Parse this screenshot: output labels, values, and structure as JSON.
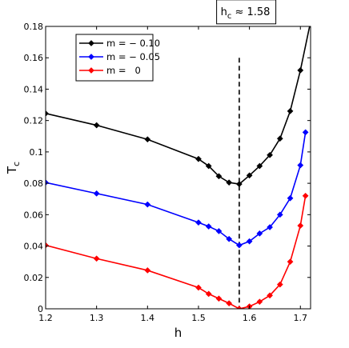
{
  "chart_data": {
    "type": "line",
    "xlabel": "h",
    "ylabel": "T",
    "ylabel_subscript": "c",
    "xlim": [
      1.2,
      1.72
    ],
    "ylim": [
      0,
      0.18
    ],
    "xticks": [
      1.2,
      1.3,
      1.4,
      1.5,
      1.6,
      1.7
    ],
    "xtick_labels": [
      "1.2",
      "1.3",
      "1.4",
      "1.5",
      "1.6",
      "1.7"
    ],
    "yticks": [
      0,
      0.02,
      0.04,
      0.06,
      0.08,
      0.1,
      0.12,
      0.14,
      0.16,
      0.18
    ],
    "ytick_labels": [
      "0",
      "0.02",
      "0.04",
      "0.06",
      "0.08",
      "0.1",
      "0.12",
      "0.14",
      "0.16",
      "0.18"
    ],
    "grid": false,
    "legend_position": "top-left",
    "series": [
      {
        "name": "m = − 0.10",
        "color": "#000000",
        "marker": "diamond",
        "x": [
          1.2,
          1.3,
          1.4,
          1.5,
          1.52,
          1.54,
          1.56,
          1.58,
          1.6,
          1.62,
          1.64,
          1.66,
          1.68,
          1.7,
          1.72
        ],
        "y": [
          0.1245,
          0.117,
          0.108,
          0.0955,
          0.091,
          0.0845,
          0.0805,
          0.0795,
          0.085,
          0.091,
          0.098,
          0.1085,
          0.126,
          0.152,
          0.183
        ]
      },
      {
        "name": "m = − 0.05",
        "color": "#0000ff",
        "marker": "diamond",
        "x": [
          1.2,
          1.3,
          1.4,
          1.5,
          1.52,
          1.54,
          1.56,
          1.58,
          1.6,
          1.62,
          1.64,
          1.66,
          1.68,
          1.7,
          1.71
        ],
        "y": [
          0.0805,
          0.0735,
          0.0665,
          0.055,
          0.0525,
          0.0495,
          0.0445,
          0.0405,
          0.043,
          0.048,
          0.052,
          0.06,
          0.0705,
          0.0915,
          0.1125
        ]
      },
      {
        "name": "m =   0",
        "color": "#ff0000",
        "marker": "diamond",
        "x": [
          1.2,
          1.3,
          1.4,
          1.5,
          1.52,
          1.54,
          1.56,
          1.58,
          1.6,
          1.62,
          1.64,
          1.66,
          1.68,
          1.7,
          1.71
        ],
        "y": [
          0.0405,
          0.032,
          0.0245,
          0.0135,
          0.0095,
          0.0065,
          0.0035,
          0.0,
          0.0015,
          0.0045,
          0.0085,
          0.0155,
          0.03,
          0.053,
          0.072
        ]
      }
    ],
    "annotations": [
      {
        "kind": "vertical-dashed-line",
        "x": 1.58,
        "y_from": 0,
        "y_to": 0.16
      },
      {
        "kind": "text-box",
        "text_main": "h",
        "text_sub": "c",
        "text_rest": " ≈ 1.58",
        "anchor_x": 1.545,
        "anchor_y": 0.1755
      }
    ]
  }
}
